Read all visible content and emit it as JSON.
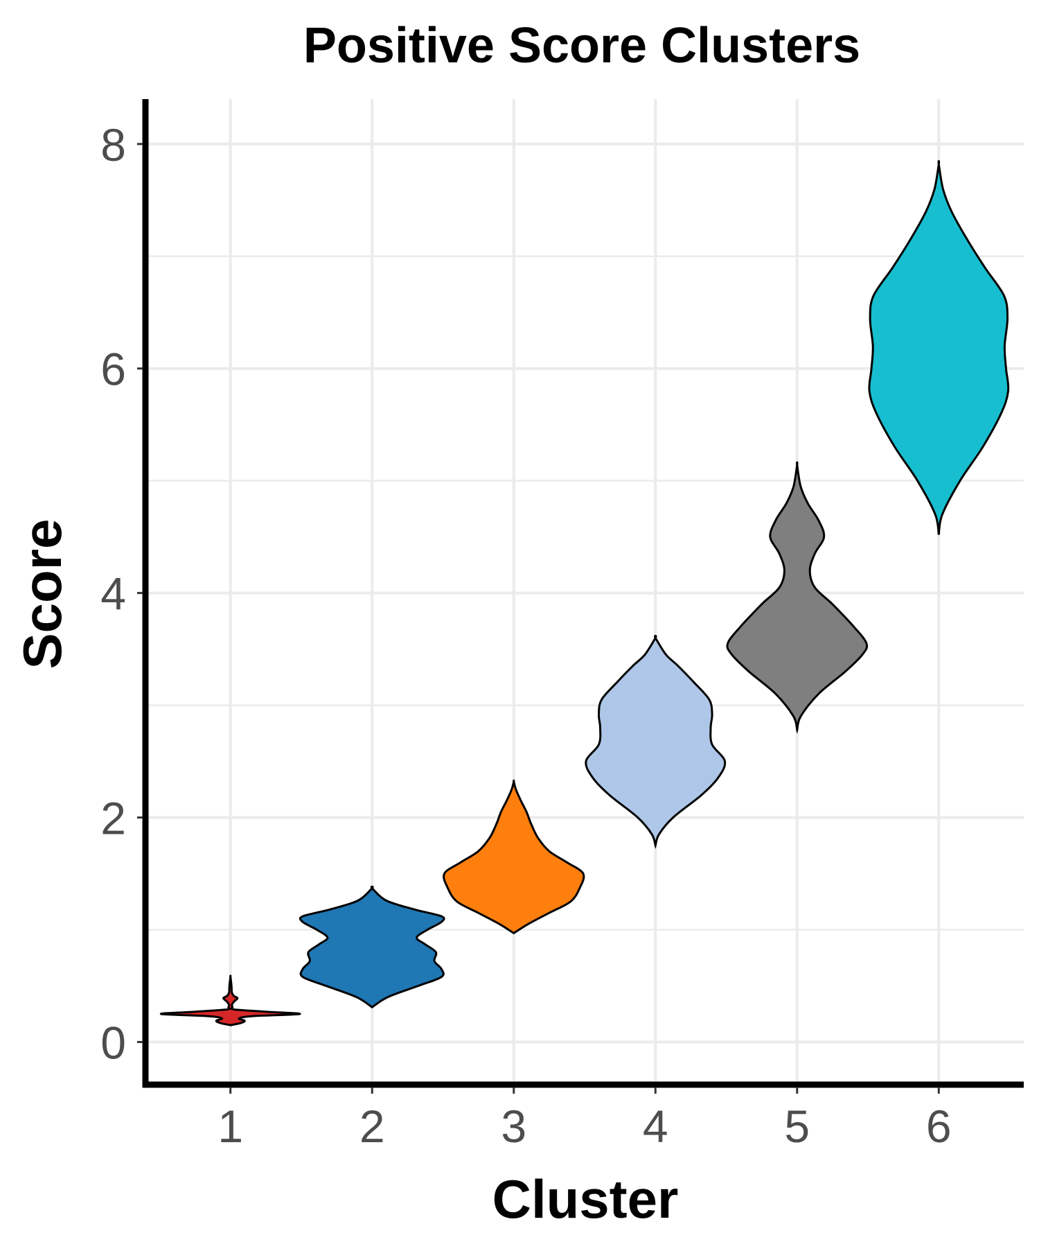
{
  "chart_data": {
    "type": "violin",
    "title": "Positive Score Clusters",
    "xlabel": "Cluster",
    "ylabel": "Score",
    "categories": [
      "1",
      "2",
      "3",
      "4",
      "5",
      "6"
    ],
    "ylim": [
      -0.38,
      8.4
    ],
    "y_ticks": [
      "0",
      "2",
      "4",
      "6",
      "8"
    ],
    "grid": true,
    "legend": "none",
    "series": [
      {
        "category": "1",
        "color": "#d62728",
        "min": 0.15,
        "max": 0.58,
        "profile": [
          [
            0.15,
            0.0
          ],
          [
            0.17,
            0.15
          ],
          [
            0.19,
            0.2
          ],
          [
            0.21,
            0.12
          ],
          [
            0.23,
            0.3
          ],
          [
            0.25,
            0.98
          ],
          [
            0.27,
            0.5
          ],
          [
            0.29,
            0.05
          ],
          [
            0.31,
            0.03
          ],
          [
            0.33,
            0.02
          ],
          [
            0.36,
            0.05
          ],
          [
            0.39,
            0.1
          ],
          [
            0.41,
            0.05
          ],
          [
            0.44,
            0.02
          ],
          [
            0.5,
            0.015
          ],
          [
            0.58,
            0.0
          ]
        ]
      },
      {
        "category": "2",
        "color": "#1f77b4",
        "min": 0.31,
        "max": 1.37,
        "profile": [
          [
            0.31,
            0.0
          ],
          [
            0.4,
            0.22
          ],
          [
            0.5,
            0.65
          ],
          [
            0.58,
            0.98
          ],
          [
            0.65,
            0.98
          ],
          [
            0.72,
            0.88
          ],
          [
            0.8,
            0.9
          ],
          [
            0.87,
            0.75
          ],
          [
            0.93,
            0.63
          ],
          [
            1.0,
            0.78
          ],
          [
            1.07,
            0.98
          ],
          [
            1.12,
            0.98
          ],
          [
            1.18,
            0.6
          ],
          [
            1.26,
            0.2
          ],
          [
            1.37,
            0.0
          ]
        ]
      },
      {
        "category": "3",
        "color": "#ff7f0e",
        "min": 0.97,
        "max": 2.32,
        "profile": [
          [
            0.97,
            0.0
          ],
          [
            1.05,
            0.2
          ],
          [
            1.15,
            0.5
          ],
          [
            1.25,
            0.8
          ],
          [
            1.37,
            0.93
          ],
          [
            1.5,
            0.98
          ],
          [
            1.6,
            0.75
          ],
          [
            1.7,
            0.5
          ],
          [
            1.82,
            0.34
          ],
          [
            1.95,
            0.24
          ],
          [
            2.05,
            0.18
          ],
          [
            2.15,
            0.1
          ],
          [
            2.25,
            0.03
          ],
          [
            2.32,
            0.0
          ]
        ]
      },
      {
        "category": "4",
        "color": "#aec7e8",
        "min": 1.75,
        "max": 3.6,
        "profile": [
          [
            1.75,
            0.0
          ],
          [
            1.85,
            0.05
          ],
          [
            2.0,
            0.25
          ],
          [
            2.2,
            0.65
          ],
          [
            2.35,
            0.88
          ],
          [
            2.5,
            0.98
          ],
          [
            2.65,
            0.8
          ],
          [
            2.8,
            0.78
          ],
          [
            2.92,
            0.8
          ],
          [
            3.05,
            0.76
          ],
          [
            3.2,
            0.55
          ],
          [
            3.35,
            0.32
          ],
          [
            3.45,
            0.15
          ],
          [
            3.6,
            0.0
          ]
        ]
      },
      {
        "category": "5",
        "color": "#7f7f7f",
        "min": 2.78,
        "max": 5.14,
        "profile": [
          [
            2.78,
            0.0
          ],
          [
            2.9,
            0.05
          ],
          [
            3.1,
            0.3
          ],
          [
            3.3,
            0.68
          ],
          [
            3.45,
            0.92
          ],
          [
            3.55,
            0.98
          ],
          [
            3.7,
            0.8
          ],
          [
            3.9,
            0.5
          ],
          [
            4.05,
            0.25
          ],
          [
            4.2,
            0.18
          ],
          [
            4.35,
            0.25
          ],
          [
            4.5,
            0.38
          ],
          [
            4.65,
            0.3
          ],
          [
            4.8,
            0.15
          ],
          [
            4.95,
            0.05
          ],
          [
            5.14,
            0.0
          ]
        ]
      },
      {
        "category": "6",
        "color": "#17becf",
        "min": 4.52,
        "max": 7.82,
        "profile": [
          [
            4.52,
            0.0
          ],
          [
            4.7,
            0.05
          ],
          [
            5.0,
            0.3
          ],
          [
            5.3,
            0.62
          ],
          [
            5.6,
            0.88
          ],
          [
            5.8,
            0.98
          ],
          [
            6.0,
            0.95
          ],
          [
            6.2,
            0.93
          ],
          [
            6.45,
            0.97
          ],
          [
            6.65,
            0.92
          ],
          [
            6.9,
            0.65
          ],
          [
            7.15,
            0.4
          ],
          [
            7.4,
            0.18
          ],
          [
            7.6,
            0.06
          ],
          [
            7.82,
            0.0
          ]
        ]
      }
    ]
  }
}
